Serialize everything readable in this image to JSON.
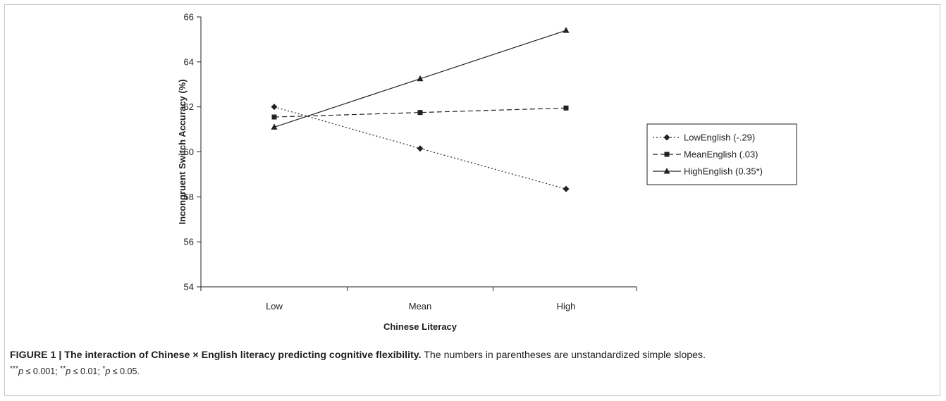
{
  "chart_data": {
    "type": "line",
    "categories": [
      "Low",
      "Mean",
      "High"
    ],
    "series": [
      {
        "name": "LowEnglish (-.29)",
        "values": [
          62.0,
          60.15,
          58.35
        ],
        "style": "dotted",
        "marker": "diamond"
      },
      {
        "name": "MeanEnglish (.03)",
        "values": [
          61.55,
          61.75,
          61.95
        ],
        "style": "dashed",
        "marker": "square"
      },
      {
        "name": "HighEnglish (0.35*)",
        "values": [
          61.1,
          63.25,
          65.4
        ],
        "style": "solid",
        "marker": "triangle"
      }
    ],
    "xlabel": "Chinese Literacy",
    "ylabel": "Incongruent Switch Accuracy (%)",
    "ylim": [
      54,
      66
    ],
    "yticks": [
      "54",
      "56",
      "58",
      "60",
      "62",
      "64",
      "66"
    ],
    "grid": false,
    "legend_position": "right"
  },
  "caption": {
    "lead": "FIGURE 1 | The interaction of Chinese × English literacy predicting cognitive flexibility.",
    "body": " The numbers in parentheses are unstandardized simple slopes.",
    "sig_1_stars": "***",
    "sig_1_text": " ≤ 0.001; ",
    "sig_2_stars": "**",
    "sig_2_text": " ≤ 0.01; ",
    "sig_3_stars": "*",
    "sig_3_text": " ≤ 0.05.",
    "p_symbol": "p"
  },
  "colors": {
    "line": "#222222",
    "border": "#c8c8c8"
  }
}
